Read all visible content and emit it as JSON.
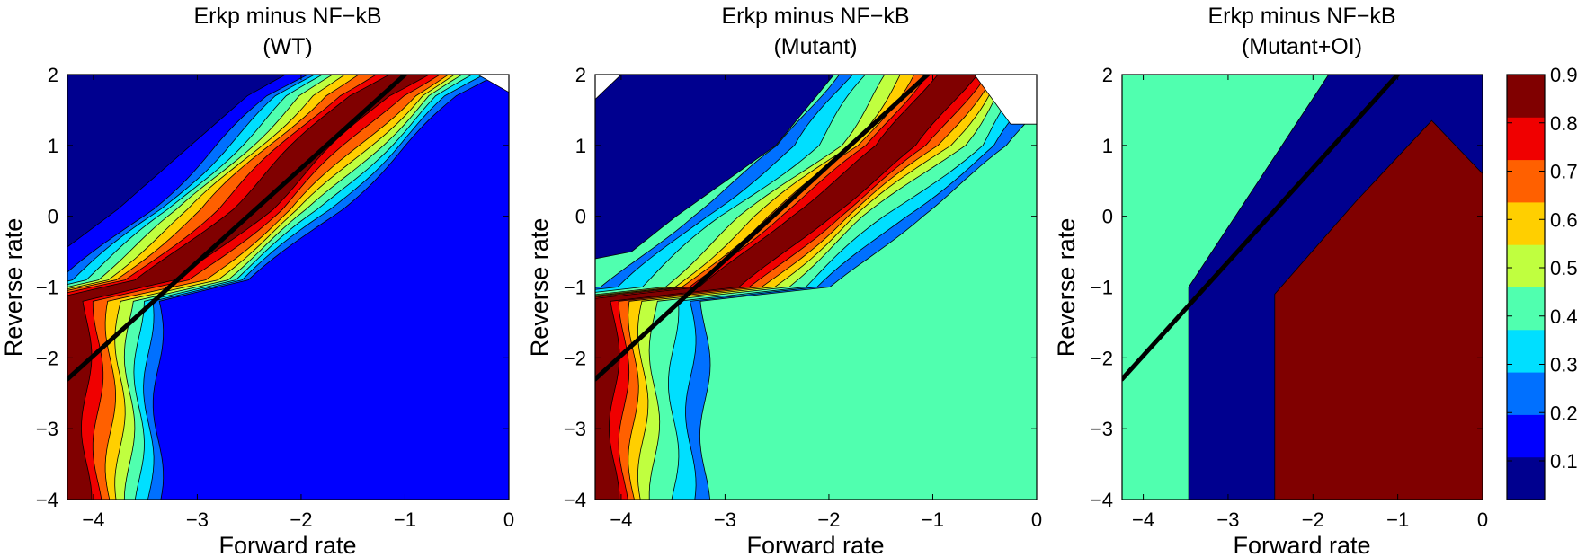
{
  "colors": {
    "colormap": [
      "#00008f",
      "#0000ff",
      "#0070ff",
      "#00dfff",
      "#50ffaf",
      "#c0ff3f",
      "#ffcf00",
      "#ff6000",
      "#f00000",
      "#800000"
    ],
    "line": "#000000",
    "fill_blue": "#0a2bff",
    "fill_aqua": "#55ffa8",
    "fill_maroon": "#800000"
  },
  "chart_data": [
    {
      "type": "contour",
      "title": [
        "Erkp minus NF−kB",
        "(WT)"
      ],
      "xlabel": "Forward rate",
      "ylabel": "Reverse rate",
      "xlim": [
        -4.25,
        0
      ],
      "ylim": [
        -4,
        2
      ],
      "xticks": [
        -4,
        -3,
        -2,
        -1,
        0
      ],
      "xtick_labels": [
        "−4",
        "−3",
        "−2",
        "−1",
        "0"
      ],
      "yticks": [
        -4,
        -3,
        -2,
        -1,
        0,
        1,
        2
      ],
      "ytick_labels": [
        "−4",
        "−3",
        "−2",
        "−1",
        "0",
        "1",
        "2"
      ],
      "background_level": 1,
      "contour_levels": [
        9,
        8,
        7,
        6,
        5,
        4,
        3,
        2
      ],
      "ridge": {
        "x": [
          -4.25,
          -3.35,
          -2.5,
          -1.35,
          -1.0
        ],
        "y": [
          -1.2,
          -0.9,
          0.1,
          1.7,
          2.0
        ]
      },
      "widths": [
        0.95,
        0.85,
        0.75,
        0.65,
        0.55,
        0.45,
        0.32,
        0.2
      ],
      "line": {
        "x": [
          -4.25,
          -1.0
        ],
        "y": [
          -2.3,
          2.0
        ]
      },
      "blank_region": {
        "x": [
          -0.3,
          0,
          0
        ],
        "y": [
          2,
          2,
          1.75
        ]
      }
    },
    {
      "type": "contour",
      "title": [
        "Erkp minus NF−kB",
        "(Mutant)"
      ],
      "xlabel": "Forward rate",
      "ylabel": "Reverse rate",
      "xlim": [
        -4.25,
        0
      ],
      "ylim": [
        -4,
        2
      ],
      "xticks": [
        -4,
        -3,
        -2,
        -1,
        0
      ],
      "xtick_labels": [
        "−4",
        "−3",
        "−2",
        "−1",
        "0"
      ],
      "yticks": [
        -4,
        -3,
        -2,
        -1,
        0,
        1,
        2
      ],
      "ytick_labels": [
        "−4",
        "−3",
        "−2",
        "−1",
        "0",
        "1",
        "2"
      ],
      "background_level": 4,
      "contour_levels": [
        9,
        8,
        7,
        6,
        5,
        4,
        3,
        2
      ],
      "ridge": {
        "x": [
          -4.25,
          -3.0,
          -2.2,
          -1.3,
          -0.8
        ],
        "y": [
          -1.2,
          -1.0,
          0.0,
          1.0,
          2.0
        ]
      },
      "widths": [
        1.15,
        1.0,
        0.82,
        0.62,
        0.5,
        0.4,
        0.3,
        0.2
      ],
      "line": {
        "x": [
          -4.25,
          -1.05
        ],
        "y": [
          -2.3,
          2.0
        ]
      },
      "blank_region": {
        "x": [
          -0.6,
          0,
          0,
          -0.25
        ],
        "y": [
          2,
          2,
          1.3,
          1.3
        ]
      },
      "blank_region_2": {
        "x": [
          -4.25,
          -4.0,
          -4.25
        ],
        "y": [
          2,
          2,
          1.65
        ]
      }
    },
    {
      "type": "contour",
      "title": [
        "Erkp minus NF−kB",
        "(Mutant+OI)"
      ],
      "xlabel": "Forward rate",
      "ylabel": "Reverse rate",
      "xlim": [
        -4.25,
        0
      ],
      "ylim": [
        -4,
        2
      ],
      "xticks": [
        -4,
        -3,
        -2,
        -1,
        0
      ],
      "xtick_labels": [
        "−4",
        "−3",
        "−2",
        "−1",
        "0"
      ],
      "yticks": [
        -4,
        -3,
        -2,
        -1,
        0,
        1,
        2
      ],
      "ytick_labels": [
        "−4",
        "−3",
        "−2",
        "−1",
        "0",
        "1",
        "2"
      ],
      "background_level": 4,
      "max_region_level": 9,
      "band_levels": [
        8,
        7,
        6,
        5,
        4,
        3,
        2,
        1,
        0
      ],
      "line": {
        "x": [
          -4.25,
          -1.0
        ],
        "y": [
          -2.3,
          2.0
        ]
      }
    }
  ],
  "colorbar": {
    "ticks": [
      0.1,
      0.2,
      0.3,
      0.4,
      0.5,
      0.6,
      0.7,
      0.8,
      0.9
    ],
    "tick_labels": [
      "0.1",
      "0.2",
      "0.3",
      "0.4",
      "0.5",
      "0.6",
      "0.7",
      "0.8",
      "0.9"
    ],
    "range": [
      0.02,
      0.9
    ]
  }
}
